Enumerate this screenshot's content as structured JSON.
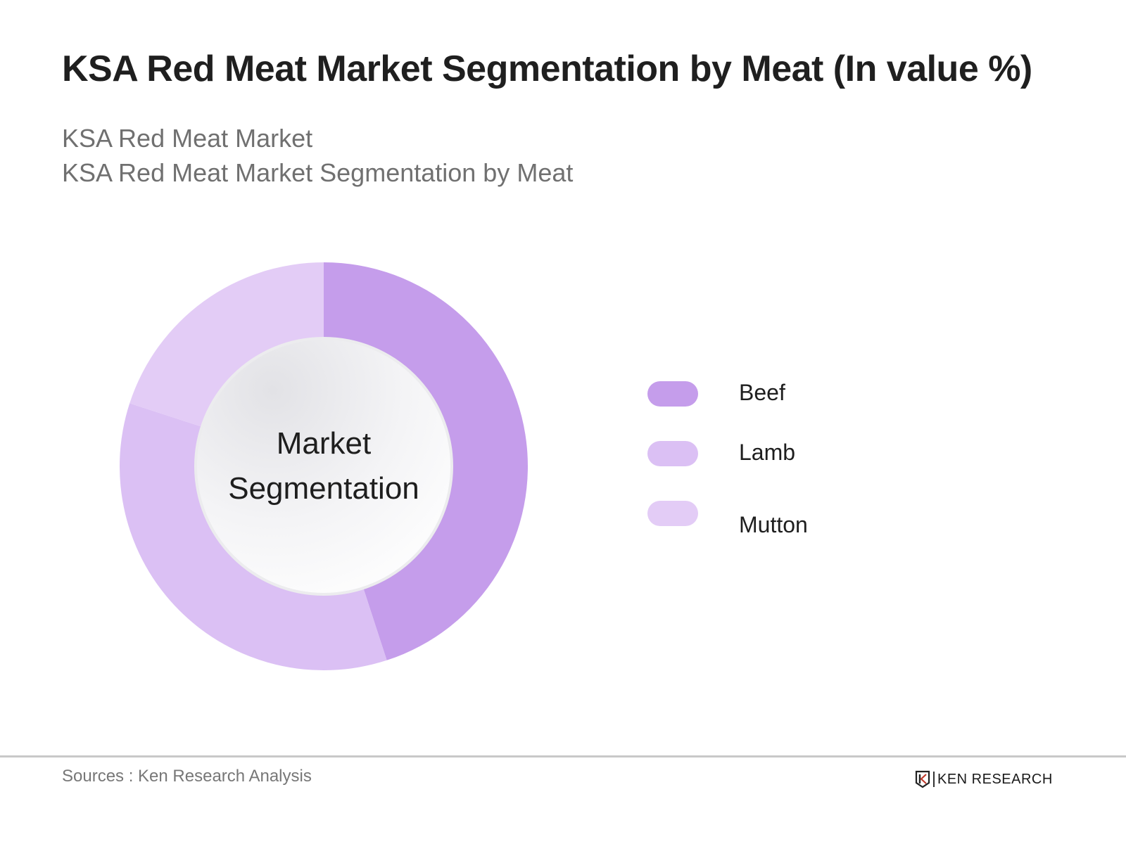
{
  "header": {
    "title": "KSA Red Meat Market Segmentation by Meat (In value %)",
    "subtitle_line1": "KSA Red Meat Market",
    "subtitle_line2": "KSA Red Meat Market Segmentation by Meat"
  },
  "chart": {
    "center_label_line1": "Market",
    "center_label_line2": "Segmentation"
  },
  "legend": {
    "items": [
      {
        "label": "Beef",
        "color": "#c59deb"
      },
      {
        "label": "Lamb",
        "color": "#dbc0f4"
      },
      {
        "label": "Mutton",
        "color": "#e3ccf6"
      }
    ]
  },
  "footer": {
    "sources": "Sources : Ken Research Analysis",
    "brand": "KEN RESEARCH",
    "brand_icon": "ken-research-logo-icon"
  },
  "chart_data": {
    "type": "pie",
    "variant": "donut",
    "title": "KSA Red Meat Market Segmentation by Meat (In value %)",
    "subtitle": [
      "KSA Red Meat Market",
      "KSA Red Meat Market Segmentation by Meat"
    ],
    "center_text": "Market Segmentation",
    "categories": [
      "Beef",
      "Lamb",
      "Mutton"
    ],
    "values": [
      45,
      35,
      20
    ],
    "colors": [
      "#c59deb",
      "#dbc0f4",
      "#e3ccf6"
    ],
    "start_angle": "12 o'clock, clockwise",
    "data_labels_shown": false,
    "legend_position": "right",
    "source": "Sources : Ken Research Analysis"
  }
}
